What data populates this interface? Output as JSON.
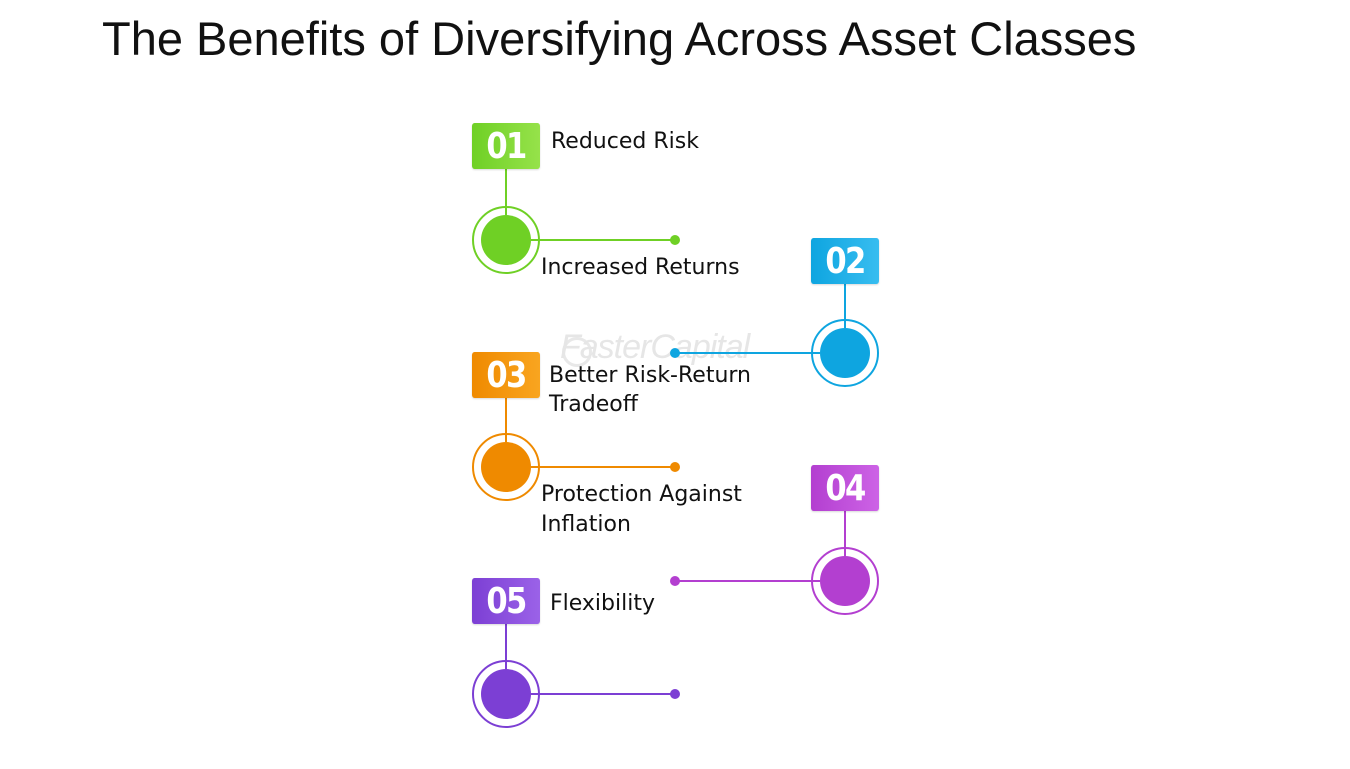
{
  "title": "The Benefits of Diversifying Across Asset Classes",
  "watermark": "FasterCapital",
  "benefits": [
    {
      "number": "01",
      "label": "Reduced Risk",
      "color": "#6fd025",
      "color_light": "#96e24a"
    },
    {
      "number": "02",
      "label": "Increased Returns",
      "color": "#0ea5e0",
      "color_light": "#38bdf0"
    },
    {
      "number": "03",
      "label_line1": "Better Risk-Return",
      "label_line2": "Tradeoff",
      "color": "#ef8a00",
      "color_light": "#f9a520"
    },
    {
      "number": "04",
      "label_line1": "Protection Against",
      "label_line2": "Inflation",
      "color": "#b33fd0",
      "color_light": "#cd63e6"
    },
    {
      "number": "05",
      "label": "Flexibility",
      "color": "#7c3fd4",
      "color_light": "#9b62e8"
    }
  ]
}
